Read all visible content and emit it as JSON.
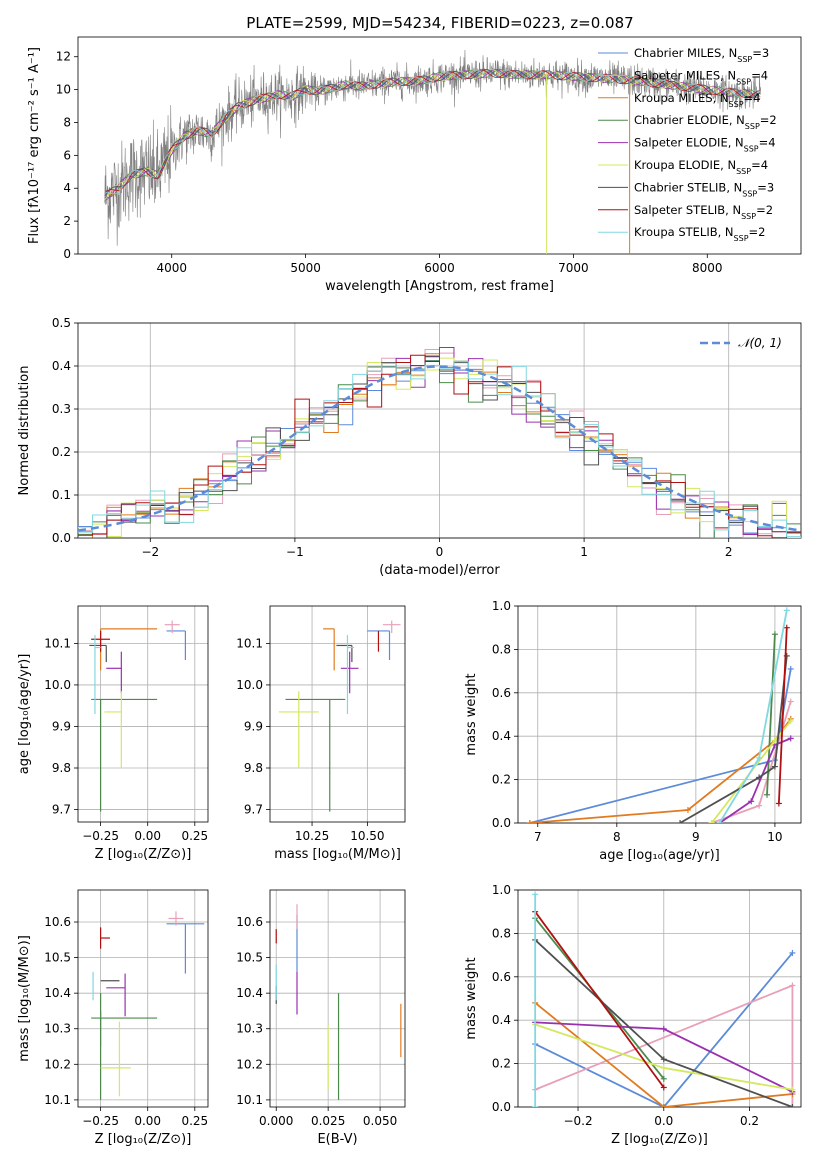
{
  "figure": {
    "title": "PLATE=2599, MJD=54234, FIBERID=0223, z=0.087"
  },
  "colors": {
    "Chabrier MILES": "#5b8bd9",
    "Salpeter MILES": "#e8a0b8",
    "Kroupa MILES": "#e07b20",
    "Chabrier ELODIE": "#4c8a4c",
    "Salpeter ELODIE": "#9a30b0",
    "Kroupa ELODIE": "#d4e860",
    "Chabrier STELIB": "#505050",
    "Salpeter STELIB": "#b01010",
    "Kroupa STELIB": "#80d8e0",
    "data": "#808080",
    "grid": "#b0b0b0",
    "gaussian": "#5b8bd9"
  },
  "chart_data": [
    {
      "id": "spectrum",
      "type": "line",
      "title": "PLATE=2599, MJD=54234, FIBERID=0223, z=0.087",
      "xlabel": "wavelength [Angstrom, rest frame]",
      "ylabel": "Flux [fλ10⁻¹⁷ erg cm⁻² s⁻¹ A⁻¹]",
      "xlim": [
        3300,
        8700
      ],
      "ylim": [
        0,
        13.2
      ],
      "xticks": [
        4000,
        5000,
        6000,
        7000,
        8000
      ],
      "yticks": [
        0,
        2,
        4,
        6,
        8,
        10,
        12
      ],
      "grid": false,
      "legend_position": "top-right",
      "legend": [
        {
          "label": "Chabrier MILES, N",
          "sub": "SSP",
          "tail": "=3",
          "key": "Chabrier MILES"
        },
        {
          "label": "Salpeter MILES, N",
          "sub": "SSP",
          "tail": "=4",
          "key": "Salpeter MILES"
        },
        {
          "label": "Kroupa MILES, N",
          "sub": "SSP",
          "tail": "=4",
          "key": "Kroupa MILES"
        },
        {
          "label": "Chabrier ELODIE, N",
          "sub": "SSP",
          "tail": "=2",
          "key": "Chabrier ELODIE"
        },
        {
          "label": "Salpeter ELODIE, N",
          "sub": "SSP",
          "tail": "=4",
          "key": "Salpeter ELODIE"
        },
        {
          "label": "Kroupa ELODIE, N",
          "sub": "SSP",
          "tail": "=4",
          "key": "Kroupa ELODIE"
        },
        {
          "label": "Chabrier STELIB, N",
          "sub": "SSP",
          "tail": "=3",
          "key": "Chabrier STELIB"
        },
        {
          "label": "Salpeter STELIB, N",
          "sub": "SSP",
          "tail": "=2",
          "key": "Salpeter STELIB"
        },
        {
          "label": "Kroupa STELIB, N",
          "sub": "SSP",
          "tail": "=2",
          "key": "Kroupa STELIB"
        }
      ],
      "continuum": {
        "x": [
          3500,
          3600,
          3700,
          3800,
          3900,
          4000,
          4100,
          4200,
          4300,
          4400,
          4500,
          4600,
          4700,
          4800,
          4900,
          5000,
          5100,
          5200,
          5300,
          5400,
          5500,
          5600,
          5700,
          5800,
          5900,
          6000,
          6200,
          6400,
          6600,
          6800,
          7000,
          7200,
          7400,
          7600,
          7800,
          8000,
          8200,
          8400
        ],
        "y": [
          3.5,
          4.0,
          4.8,
          5.0,
          4.8,
          6.3,
          7.2,
          7.5,
          7.3,
          8.3,
          9.0,
          9.3,
          9.5,
          9.7,
          9.6,
          10.0,
          9.9,
          10.1,
          10.3,
          10.2,
          10.3,
          10.4,
          10.5,
          10.5,
          10.6,
          10.8,
          10.9,
          11.0,
          10.9,
          10.9,
          10.8,
          10.7,
          10.6,
          10.4,
          10.2,
          10.0,
          9.8,
          9.7
        ]
      }
    },
    {
      "id": "residuals",
      "type": "histogram",
      "xlabel": "(data-model)/error",
      "ylabel": "Normed distribution",
      "xlim": [
        -2.5,
        2.5
      ],
      "ylim": [
        0,
        0.5
      ],
      "xticks": [
        -2,
        -1,
        0,
        1,
        2
      ],
      "yticks": [
        0.0,
        0.1,
        0.2,
        0.3,
        0.4,
        0.5
      ],
      "grid": true,
      "legend_position": "top-right",
      "legend": [
        {
          "label": "𝒩(0, 1)",
          "key": "gaussian"
        }
      ],
      "bin_width": 0.1
    },
    {
      "id": "age_vs_Z",
      "type": "scatter",
      "xlabel": "Z [log₁₀(Z/Z⊙)]",
      "ylabel": "age  [log₁₀(age/yr)]",
      "xlim": [
        -0.37,
        0.32
      ],
      "ylim": [
        9.67,
        10.19
      ],
      "xticks": [
        -0.25,
        0.0,
        0.25
      ],
      "yticks": [
        9.7,
        9.8,
        9.9,
        10.0,
        10.1
      ],
      "grid": true,
      "points": [
        {
          "key": "Chabrier MILES",
          "x": 0.2,
          "y": 10.13,
          "xerr": [
            0.1,
            0.0
          ],
          "yerr": [
            0.07,
            0.0
          ]
        },
        {
          "key": "Salpeter MILES",
          "x": 0.13,
          "y": 10.145,
          "xerr": [
            0.04,
            0.04
          ],
          "yerr": [
            0.02,
            0.01
          ]
        },
        {
          "key": "Kroupa MILES",
          "x": -0.25,
          "y": 10.135,
          "xerr": [
            0.0,
            0.3
          ],
          "yerr": [
            0.1,
            0.0
          ]
        },
        {
          "key": "Chabrier ELODIE",
          "x": -0.25,
          "y": 9.965,
          "xerr": [
            0.05,
            0.3
          ],
          "yerr": [
            0.27,
            0.0
          ]
        },
        {
          "key": "Salpeter ELODIE",
          "x": -0.14,
          "y": 10.04,
          "xerr": [
            0.08,
            0.0
          ],
          "yerr": [
            0.06,
            0.04
          ]
        },
        {
          "key": "Kroupa ELODIE",
          "x": -0.14,
          "y": 9.935,
          "xerr": [
            0.09,
            0.0
          ],
          "yerr": [
            0.135,
            0.05
          ]
        },
        {
          "key": "Chabrier STELIB",
          "x": -0.22,
          "y": 10.095,
          "xerr": [
            0.09,
            0.0
          ],
          "yerr": [
            0.04,
            0.0
          ]
        },
        {
          "key": "Salpeter STELIB",
          "x": -0.25,
          "y": 10.11,
          "xerr": [
            0.05,
            0.05
          ],
          "yerr": [
            0.03,
            0.02
          ]
        },
        {
          "key": "Kroupa STELIB",
          "x": -0.28,
          "y": 10.09,
          "xerr": [
            0.0,
            0.03
          ],
          "yerr": [
            0.16,
            0.03
          ]
        }
      ]
    },
    {
      "id": "age_vs_mass",
      "type": "scatter",
      "xlabel": "mass [log₁₀(M/M⊙)]",
      "ylabel": "",
      "xlim": [
        10.06,
        10.67
      ],
      "ylim": [
        9.67,
        10.19
      ],
      "xticks": [
        10.25,
        10.5
      ],
      "yticks": [
        9.7,
        9.8,
        9.9,
        10.0,
        10.1
      ],
      "grid": true,
      "points": [
        {
          "key": "Chabrier MILES",
          "x": 10.6,
          "y": 10.13,
          "xerr": [
            0.1,
            0.0
          ],
          "yerr": [
            0.07,
            0.0
          ]
        },
        {
          "key": "Salpeter MILES",
          "x": 10.61,
          "y": 10.145,
          "xerr": [
            0.04,
            0.04
          ],
          "yerr": [
            0.02,
            0.01
          ]
        },
        {
          "key": "Kroupa MILES",
          "x": 10.35,
          "y": 10.135,
          "xerr": [
            0.05,
            0.0
          ],
          "yerr": [
            0.1,
            0.0
          ]
        },
        {
          "key": "Chabrier ELODIE",
          "x": 10.33,
          "y": 9.965,
          "xerr": [
            0.2,
            0.07
          ],
          "yerr": [
            0.27,
            0.0
          ]
        },
        {
          "key": "Salpeter ELODIE",
          "x": 10.42,
          "y": 10.04,
          "xerr": [
            0.04,
            0.04
          ],
          "yerr": [
            0.06,
            0.04
          ]
        },
        {
          "key": "Kroupa ELODIE",
          "x": 10.19,
          "y": 9.935,
          "xerr": [
            0.09,
            0.09
          ],
          "yerr": [
            0.135,
            0.05
          ]
        },
        {
          "key": "Chabrier STELIB",
          "x": 10.43,
          "y": 10.095,
          "xerr": [
            0.07,
            0.0
          ],
          "yerr": [
            0.04,
            0.0
          ]
        },
        {
          "key": "Salpeter STELIB",
          "x": 10.55,
          "y": 10.11,
          "xerr": [
            0.0,
            0.0
          ],
          "yerr": [
            0.03,
            0.02
          ]
        },
        {
          "key": "Kroupa STELIB",
          "x": 10.41,
          "y": 10.09,
          "xerr": [
            0.0,
            0.03
          ],
          "yerr": [
            0.16,
            0.03
          ]
        }
      ]
    },
    {
      "id": "massweight_vs_age",
      "type": "line",
      "xlabel": "age  [log₁₀(age/yr)]",
      "ylabel": "mass weight",
      "xlim": [
        6.75,
        10.33
      ],
      "ylim": [
        0,
        1.0
      ],
      "xticks": [
        7,
        8,
        9,
        10
      ],
      "yticks": [
        0.0,
        0.2,
        0.4,
        0.6,
        0.8,
        1.0
      ],
      "grid": true,
      "series": [
        {
          "key": "Chabrier MILES",
          "x": [
            6.9,
            10.0,
            10.2
          ],
          "y": [
            0.0,
            0.29,
            0.71
          ]
        },
        {
          "key": "Salpeter MILES",
          "x": [
            9.2,
            9.8,
            10.2
          ],
          "y": [
            0.0,
            0.08,
            0.56
          ]
        },
        {
          "key": "Kroupa MILES",
          "x": [
            6.9,
            8.9,
            10.0,
            10.2
          ],
          "y": [
            0.0,
            0.06,
            0.38,
            0.48
          ]
        },
        {
          "key": "Chabrier ELODIE",
          "x": [
            9.9,
            10.0
          ],
          "y": [
            0.13,
            0.87
          ]
        },
        {
          "key": "Salpeter ELODIE",
          "x": [
            9.3,
            9.7,
            10.0,
            10.2
          ],
          "y": [
            0.0,
            0.1,
            0.36,
            0.39
          ]
        },
        {
          "key": "Kroupa ELODIE",
          "x": [
            9.2,
            10.0,
            10.2
          ],
          "y": [
            0.0,
            0.38,
            0.47
          ]
        },
        {
          "key": "Chabrier STELIB",
          "x": [
            8.8,
            9.8,
            10.0,
            10.15
          ],
          "y": [
            0.0,
            0.21,
            0.26,
            0.77
          ]
        },
        {
          "key": "Salpeter STELIB",
          "x": [
            10.05,
            10.15
          ],
          "y": [
            0.09,
            0.9
          ]
        },
        {
          "key": "Kroupa STELIB",
          "x": [
            9.3,
            9.8,
            10.15
          ],
          "y": [
            0.0,
            0.3,
            0.98
          ]
        }
      ]
    },
    {
      "id": "mass_vs_Z",
      "type": "scatter",
      "xlabel": "Z [log₁₀(Z/Z⊙)]",
      "ylabel": "mass [log₁₀(M/M⊙)]",
      "xlim": [
        -0.37,
        0.32
      ],
      "ylim": [
        10.08,
        10.69
      ],
      "xticks": [
        -0.25,
        0.0,
        0.25
      ],
      "yticks": [
        10.1,
        10.2,
        10.3,
        10.4,
        10.5,
        10.6
      ],
      "grid": true,
      "points": [
        {
          "key": "Chabrier MILES",
          "x": 0.2,
          "y": 10.595,
          "xerr": [
            0.1,
            0.1
          ],
          "yerr": [
            0.14,
            0.0
          ]
        },
        {
          "key": "Salpeter MILES",
          "x": 0.15,
          "y": 10.61,
          "xerr": [
            0.04,
            0.04
          ],
          "yerr": [
            0.02,
            0.02
          ]
        },
        {
          "key": "Kroupa MILES",
          "x": -0.25,
          "y": 10.35,
          "xerr": [
            0.0,
            0.0
          ],
          "yerr": [
            0.1,
            0.0
          ]
        },
        {
          "key": "Chabrier ELODIE",
          "x": -0.25,
          "y": 10.33,
          "xerr": [
            0.05,
            0.3
          ],
          "yerr": [
            0.23,
            0.07
          ]
        },
        {
          "key": "Salpeter ELODIE",
          "x": -0.12,
          "y": 10.415,
          "xerr": [
            0.1,
            0.0
          ],
          "yerr": [
            0.08,
            0.04
          ]
        },
        {
          "key": "Kroupa ELODIE",
          "x": -0.15,
          "y": 10.19,
          "xerr": [
            0.1,
            0.06
          ],
          "yerr": [
            0.08,
            0.13
          ]
        },
        {
          "key": "Chabrier STELIB",
          "x": -0.15,
          "y": 10.435,
          "xerr": [
            0.1,
            0.0
          ],
          "yerr": [
            0.0,
            0.0
          ]
        },
        {
          "key": "Salpeter STELIB",
          "x": -0.25,
          "y": 10.555,
          "xerr": [
            0.0,
            0.05
          ],
          "yerr": [
            0.03,
            0.03
          ]
        },
        {
          "key": "Kroupa STELIB",
          "x": -0.29,
          "y": 10.41,
          "xerr": [
            0.0,
            0.0
          ],
          "yerr": [
            0.03,
            0.05
          ]
        }
      ]
    },
    {
      "id": "mass_vs_ebv",
      "type": "scatter",
      "xlabel": "E(B-V)",
      "ylabel": "",
      "xlim": [
        -0.003,
        0.062
      ],
      "ylim": [
        10.08,
        10.69
      ],
      "xticks": [
        0.0,
        0.025,
        0.05
      ],
      "yticks": [
        10.1,
        10.2,
        10.3,
        10.4,
        10.5,
        10.6
      ],
      "grid": true,
      "points": [
        {
          "key": "Chabrier MILES",
          "x": 0.01,
          "y": 10.5,
          "xerr": [
            0,
            0
          ],
          "yerr": [
            0.04,
            0.12
          ]
        },
        {
          "key": "Salpeter MILES",
          "x": 0.01,
          "y": 10.6,
          "xerr": [
            0,
            0
          ],
          "yerr": [
            0.02,
            0.05
          ]
        },
        {
          "key": "Kroupa MILES",
          "x": 0.06,
          "y": 10.29,
          "xerr": [
            0,
            0
          ],
          "yerr": [
            0.07,
            0.08
          ]
        },
        {
          "key": "Chabrier ELODIE",
          "x": 0.03,
          "y": 10.25,
          "xerr": [
            0,
            0
          ],
          "yerr": [
            0.15,
            0.15
          ]
        },
        {
          "key": "Salpeter ELODIE",
          "x": 0.01,
          "y": 10.4,
          "xerr": [
            0,
            0
          ],
          "yerr": [
            0.06,
            0.06
          ]
        },
        {
          "key": "Kroupa ELODIE",
          "x": 0.025,
          "y": 10.23,
          "xerr": [
            0,
            0
          ],
          "yerr": [
            0.1,
            0.08
          ]
        },
        {
          "key": "Chabrier STELIB",
          "x": 0.0,
          "y": 10.42,
          "xerr": [
            0,
            0
          ],
          "yerr": [
            0.05,
            0.0
          ]
        },
        {
          "key": "Salpeter STELIB",
          "x": 0.0,
          "y": 10.54,
          "xerr": [
            0,
            0
          ],
          "yerr": [
            0.0,
            0.04
          ]
        },
        {
          "key": "Kroupa STELIB",
          "x": 0.0,
          "y": 10.42,
          "xerr": [
            0,
            0
          ],
          "yerr": [
            0.04,
            0.06
          ]
        }
      ]
    },
    {
      "id": "massweight_vs_Z",
      "type": "line",
      "xlabel": "Z [log₁₀(Z/Z⊙)]",
      "ylabel": "mass weight",
      "xlim": [
        -0.34,
        0.32
      ],
      "ylim": [
        0,
        1.0
      ],
      "xticks": [
        -0.2,
        0.0,
        0.2
      ],
      "yticks": [
        0.0,
        0.2,
        0.4,
        0.6,
        0.8,
        1.0
      ],
      "grid": true,
      "series": [
        {
          "key": "Chabrier MILES",
          "x": [
            -0.3,
            0.0,
            0.3
          ],
          "y": [
            0.29,
            0.0,
            0.71
          ]
        },
        {
          "key": "Salpeter MILES",
          "x": [
            -0.3,
            0.3,
            0.3
          ],
          "y": [
            0.08,
            0.56,
            0.0
          ]
        },
        {
          "key": "Kroupa MILES",
          "x": [
            -0.3,
            0.0,
            0.3
          ],
          "y": [
            0.48,
            0.0,
            0.06
          ]
        },
        {
          "key": "Chabrier ELODIE",
          "x": [
            -0.3,
            0.0
          ],
          "y": [
            0.87,
            0.13
          ]
        },
        {
          "key": "Salpeter ELODIE",
          "x": [
            -0.3,
            0.0,
            0.3
          ],
          "y": [
            0.39,
            0.36,
            0.07
          ]
        },
        {
          "key": "Kroupa ELODIE",
          "x": [
            -0.3,
            0.0,
            0.3
          ],
          "y": [
            0.38,
            0.18,
            0.08
          ]
        },
        {
          "key": "Chabrier STELIB",
          "x": [
            -0.3,
            0.0,
            0.3
          ],
          "y": [
            0.77,
            0.22,
            0.0
          ]
        },
        {
          "key": "Salpeter STELIB",
          "x": [
            -0.3,
            0.0
          ],
          "y": [
            0.9,
            0.09
          ]
        },
        {
          "key": "Kroupa STELIB",
          "x": [
            -0.3,
            -0.3
          ],
          "y": [
            0.0,
            0.98
          ]
        }
      ]
    }
  ]
}
